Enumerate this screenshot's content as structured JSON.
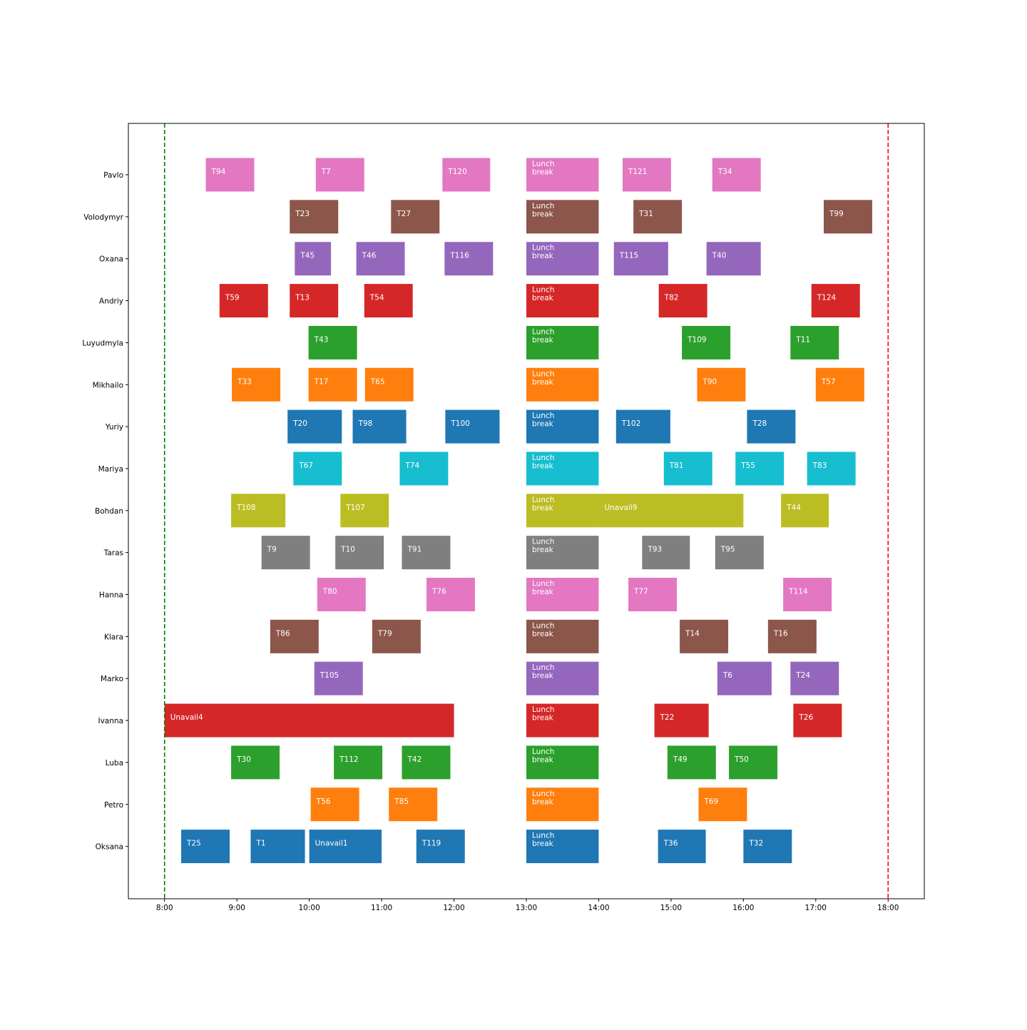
{
  "chart_data": {
    "type": "gantt",
    "title": "",
    "xlabel": "",
    "ylabel": "",
    "x_unit": "hours",
    "xlim": [
      7.5,
      18.5
    ],
    "x_ticks": [
      {
        "value": 8,
        "label": "8:00"
      },
      {
        "value": 9,
        "label": "9:00"
      },
      {
        "value": 10,
        "label": "10:00"
      },
      {
        "value": 11,
        "label": "11:00"
      },
      {
        "value": 12,
        "label": "12:00"
      },
      {
        "value": 13,
        "label": "13:00"
      },
      {
        "value": 14,
        "label": "14:00"
      },
      {
        "value": 15,
        "label": "15:00"
      },
      {
        "value": 16,
        "label": "16:00"
      },
      {
        "value": 17,
        "label": "17:00"
      },
      {
        "value": 18,
        "label": "18:00"
      }
    ],
    "reference_lines": [
      {
        "x": 8,
        "color": "#008000",
        "style": "dashed"
      },
      {
        "x": 18,
        "color": "#ff0000",
        "style": "dashed"
      }
    ],
    "grid": false,
    "rows": [
      {
        "name": "Pavlo",
        "color": "#e377c2",
        "tasks": [
          {
            "label": "T94",
            "start": 8.57,
            "end": 9.24
          },
          {
            "label": "T7",
            "start": 10.09,
            "end": 10.76
          },
          {
            "label": "T120",
            "start": 11.84,
            "end": 12.5
          },
          {
            "label": "Lunch\nbreak",
            "start": 13.0,
            "end": 14.0
          },
          {
            "label": "T121",
            "start": 14.33,
            "end": 15.0
          },
          {
            "label": "T34",
            "start": 15.57,
            "end": 16.24
          }
        ]
      },
      {
        "name": "Volodymyr",
        "color": "#8c564b",
        "tasks": [
          {
            "label": "T23",
            "start": 9.73,
            "end": 10.4
          },
          {
            "label": "T27",
            "start": 11.13,
            "end": 11.8
          },
          {
            "label": "Lunch\nbreak",
            "start": 13.0,
            "end": 14.0
          },
          {
            "label": "T31",
            "start": 14.48,
            "end": 15.15
          },
          {
            "label": "T99",
            "start": 17.11,
            "end": 17.78
          }
        ]
      },
      {
        "name": "Oxana",
        "color": "#9467bd",
        "tasks": [
          {
            "label": "T45",
            "start": 9.8,
            "end": 10.3
          },
          {
            "label": "T46",
            "start": 10.65,
            "end": 11.32
          },
          {
            "label": "T116",
            "start": 11.87,
            "end": 12.54
          },
          {
            "label": "Lunch\nbreak",
            "start": 13.0,
            "end": 14.0
          },
          {
            "label": "T115",
            "start": 14.21,
            "end": 14.96
          },
          {
            "label": "T40",
            "start": 15.49,
            "end": 16.24
          }
        ]
      },
      {
        "name": "Andriy",
        "color": "#d62728",
        "tasks": [
          {
            "label": "T59",
            "start": 8.76,
            "end": 9.43
          },
          {
            "label": "T13",
            "start": 9.73,
            "end": 10.4
          },
          {
            "label": "T54",
            "start": 10.76,
            "end": 11.43
          },
          {
            "label": "Lunch\nbreak",
            "start": 13.0,
            "end": 14.0
          },
          {
            "label": "T82",
            "start": 14.83,
            "end": 15.5
          },
          {
            "label": "T124",
            "start": 16.94,
            "end": 17.61
          }
        ]
      },
      {
        "name": "Luyudmyla",
        "color": "#2ca02c",
        "tasks": [
          {
            "label": "T43",
            "start": 9.99,
            "end": 10.66
          },
          {
            "label": "Lunch\nbreak",
            "start": 13.0,
            "end": 14.0
          },
          {
            "label": "T109",
            "start": 15.15,
            "end": 15.82
          },
          {
            "label": "T11",
            "start": 16.65,
            "end": 17.32
          }
        ]
      },
      {
        "name": "Mikhailo",
        "color": "#ff7f0e",
        "tasks": [
          {
            "label": "T33",
            "start": 8.93,
            "end": 9.6
          },
          {
            "label": "T17",
            "start": 9.99,
            "end": 10.66
          },
          {
            "label": "T65",
            "start": 10.77,
            "end": 11.44
          },
          {
            "label": "Lunch\nbreak",
            "start": 13.0,
            "end": 14.0
          },
          {
            "label": "T90",
            "start": 15.36,
            "end": 16.03
          },
          {
            "label": "T57",
            "start": 17.0,
            "end": 17.67
          }
        ]
      },
      {
        "name": "Yuriy",
        "color": "#1f77b4",
        "tasks": [
          {
            "label": "T20",
            "start": 9.7,
            "end": 10.45
          },
          {
            "label": "T98",
            "start": 10.6,
            "end": 11.34
          },
          {
            "label": "T100",
            "start": 11.88,
            "end": 12.63
          },
          {
            "label": "Lunch\nbreak",
            "start": 13.0,
            "end": 14.0
          },
          {
            "label": "T102",
            "start": 14.24,
            "end": 14.99
          },
          {
            "label": "T28",
            "start": 16.05,
            "end": 16.72
          }
        ]
      },
      {
        "name": "Mariya",
        "color": "#17becf",
        "tasks": [
          {
            "label": "T67",
            "start": 9.78,
            "end": 10.45
          },
          {
            "label": "T74",
            "start": 11.25,
            "end": 11.92
          },
          {
            "label": "Lunch\nbreak",
            "start": 13.0,
            "end": 14.0
          },
          {
            "label": "T81",
            "start": 14.9,
            "end": 15.57
          },
          {
            "label": "T55",
            "start": 15.89,
            "end": 16.56
          },
          {
            "label": "T83",
            "start": 16.88,
            "end": 17.55
          }
        ]
      },
      {
        "name": "Bohdan",
        "color": "#bcbd22",
        "tasks": [
          {
            "label": "T108",
            "start": 8.92,
            "end": 9.67
          },
          {
            "label": "T107",
            "start": 10.43,
            "end": 11.1
          },
          {
            "label": "Lunch\nbreak",
            "start": 13.0,
            "end": 14.0
          },
          {
            "label": "Unavail9",
            "start": 14.0,
            "end": 16.0
          },
          {
            "label": "T44",
            "start": 16.52,
            "end": 17.18
          }
        ]
      },
      {
        "name": "Taras",
        "color": "#7f7f7f",
        "tasks": [
          {
            "label": "T9",
            "start": 9.34,
            "end": 10.01
          },
          {
            "label": "T10",
            "start": 10.36,
            "end": 11.03
          },
          {
            "label": "T91",
            "start": 11.28,
            "end": 11.95
          },
          {
            "label": "Lunch\nbreak",
            "start": 13.0,
            "end": 14.0
          },
          {
            "label": "T93",
            "start": 14.6,
            "end": 15.26
          },
          {
            "label": "T95",
            "start": 15.61,
            "end": 16.28
          }
        ]
      },
      {
        "name": "Hanna",
        "color": "#e377c2",
        "tasks": [
          {
            "label": "T80",
            "start": 10.11,
            "end": 10.78
          },
          {
            "label": "T76",
            "start": 11.62,
            "end": 12.29
          },
          {
            "label": "Lunch\nbreak",
            "start": 13.0,
            "end": 14.0
          },
          {
            "label": "T77",
            "start": 14.41,
            "end": 15.08
          },
          {
            "label": "T114",
            "start": 16.55,
            "end": 17.22
          }
        ]
      },
      {
        "name": "Klara",
        "color": "#8c564b",
        "tasks": [
          {
            "label": "T86",
            "start": 9.46,
            "end": 10.13
          },
          {
            "label": "T79",
            "start": 10.87,
            "end": 11.54
          },
          {
            "label": "Lunch\nbreak",
            "start": 13.0,
            "end": 14.0
          },
          {
            "label": "T14",
            "start": 15.12,
            "end": 15.79
          },
          {
            "label": "T16",
            "start": 16.34,
            "end": 17.01
          }
        ]
      },
      {
        "name": "Marko",
        "color": "#9467bd",
        "tasks": [
          {
            "label": "T105",
            "start": 10.07,
            "end": 10.74
          },
          {
            "label": "Lunch\nbreak",
            "start": 13.0,
            "end": 14.0
          },
          {
            "label": "T6",
            "start": 15.64,
            "end": 16.39
          },
          {
            "label": "T24",
            "start": 16.65,
            "end": 17.32
          }
        ]
      },
      {
        "name": "Ivanna",
        "color": "#d62728",
        "tasks": [
          {
            "label": "Unavail4",
            "start": 8.0,
            "end": 12.0
          },
          {
            "label": "Lunch\nbreak",
            "start": 13.0,
            "end": 14.0
          },
          {
            "label": "T22",
            "start": 14.77,
            "end": 15.52
          },
          {
            "label": "T26",
            "start": 16.69,
            "end": 17.36
          }
        ]
      },
      {
        "name": "Luba",
        "color": "#2ca02c",
        "tasks": [
          {
            "label": "T30",
            "start": 8.92,
            "end": 9.59
          },
          {
            "label": "T112",
            "start": 10.34,
            "end": 11.01
          },
          {
            "label": "T42",
            "start": 11.28,
            "end": 11.95
          },
          {
            "label": "Lunch\nbreak",
            "start": 13.0,
            "end": 14.0
          },
          {
            "label": "T49",
            "start": 14.95,
            "end": 15.62
          },
          {
            "label": "T50",
            "start": 15.8,
            "end": 16.47
          }
        ]
      },
      {
        "name": "Petro",
        "color": "#ff7f0e",
        "tasks": [
          {
            "label": "T56",
            "start": 10.02,
            "end": 10.69
          },
          {
            "label": "T85",
            "start": 11.1,
            "end": 11.77
          },
          {
            "label": "Lunch\nbreak",
            "start": 13.0,
            "end": 14.0
          },
          {
            "label": "T69",
            "start": 15.38,
            "end": 16.05
          }
        ]
      },
      {
        "name": "Oksana",
        "color": "#1f77b4",
        "tasks": [
          {
            "label": "T25",
            "start": 8.23,
            "end": 8.9
          },
          {
            "label": "T1",
            "start": 9.19,
            "end": 9.94
          },
          {
            "label": "Unavail1",
            "start": 10.0,
            "end": 11.0
          },
          {
            "label": "T119",
            "start": 11.48,
            "end": 12.15
          },
          {
            "label": "Lunch\nbreak",
            "start": 13.0,
            "end": 14.0
          },
          {
            "label": "T36",
            "start": 14.82,
            "end": 15.48
          },
          {
            "label": "T32",
            "start": 16.0,
            "end": 16.67
          }
        ]
      }
    ]
  }
}
